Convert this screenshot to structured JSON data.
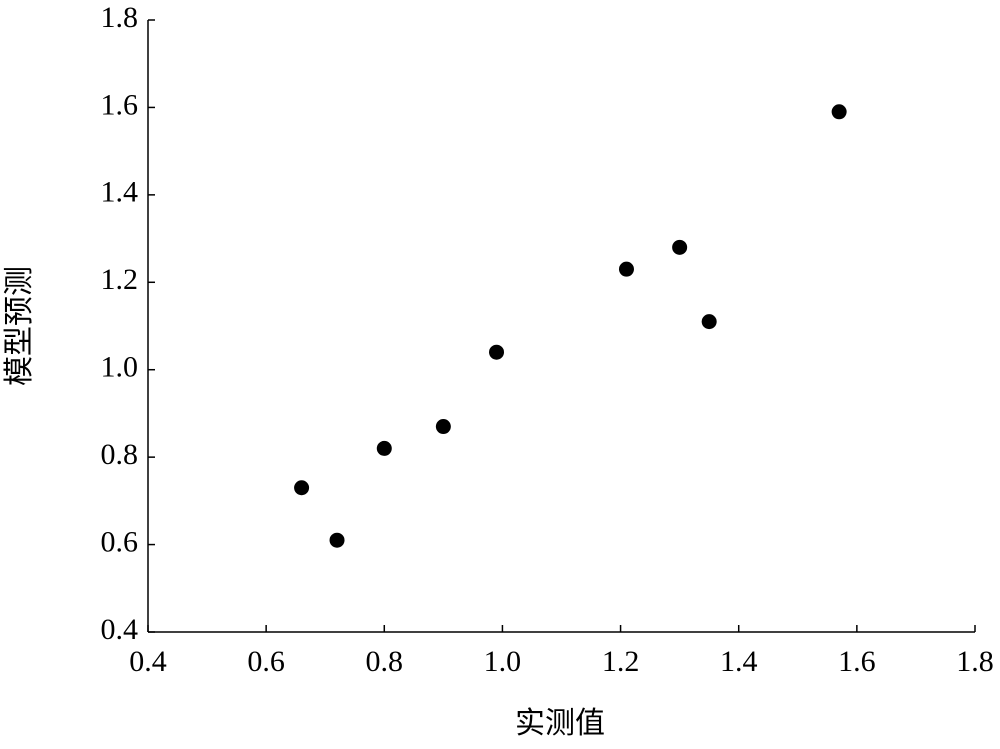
{
  "chart_data": {
    "type": "scatter",
    "x_label": "实测值",
    "y_label": "模型预测",
    "x": [
      0.66,
      0.72,
      0.8,
      0.9,
      0.99,
      1.21,
      1.3,
      1.35,
      1.57
    ],
    "values": [
      0.73,
      0.61,
      0.82,
      0.87,
      1.04,
      1.23,
      1.28,
      1.11,
      1.59
    ],
    "color": "#000000",
    "xlim": [
      0.4,
      1.8
    ],
    "ylim": [
      0.4,
      1.8
    ],
    "xticks": [
      0.4,
      0.6,
      0.8,
      {
        "value": 1,
        "label": "1.0"
      },
      1.2,
      1.4,
      1.6,
      1.8
    ],
    "yticks": [
      0.4,
      0.6,
      0.8,
      {
        "value": 1,
        "label": "1.0"
      },
      1.2,
      1.4,
      1.6,
      1.8
    ]
  }
}
